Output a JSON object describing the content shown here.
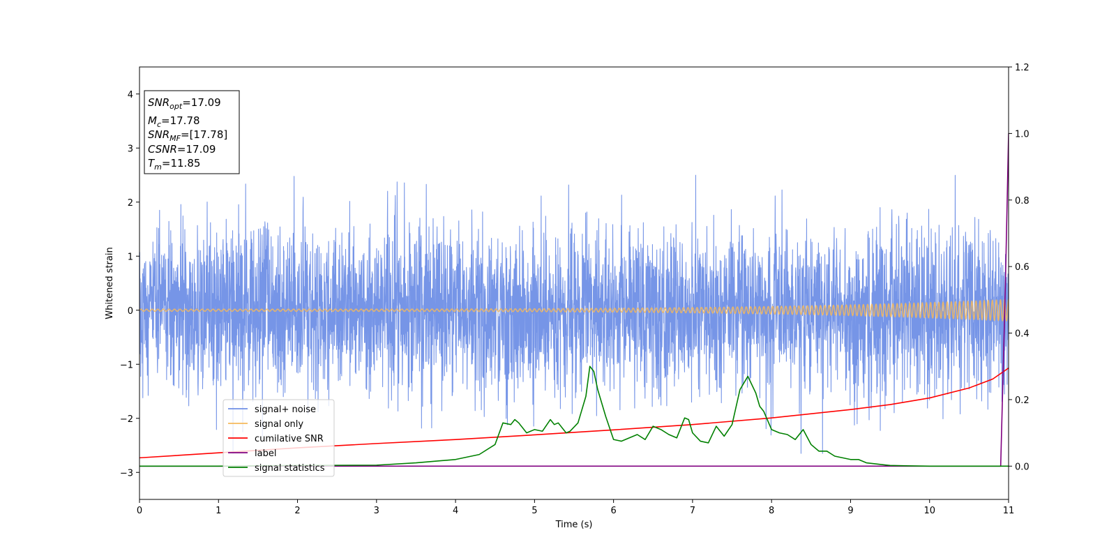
{
  "chart_data": {
    "type": "line",
    "xlabel": "Time (s)",
    "ylabel": "Whitened strain",
    "xlim": [
      0,
      11
    ],
    "ylim": [
      -3.5,
      4.5
    ],
    "y2lim": [
      -0.1,
      1.2
    ],
    "x_ticks": [
      0,
      1,
      2,
      3,
      4,
      5,
      6,
      7,
      8,
      9,
      10,
      11
    ],
    "y_ticks": [
      -3,
      -2,
      -1,
      0,
      1,
      2,
      3,
      4
    ],
    "y_tick_labels": [
      "−3",
      "−2",
      "−1",
      "0",
      "1",
      "2",
      "3",
      "4"
    ],
    "y2_ticks": [
      0.0,
      0.2,
      0.4,
      0.6,
      0.8,
      1.0,
      1.2
    ],
    "y2_tick_labels": [
      "0.0",
      "0.2",
      "0.4",
      "0.6",
      "0.8",
      "1.0",
      "1.2"
    ],
    "grid": false,
    "legend_position": "lower-left",
    "annotation": {
      "lines": [
        {
          "sym": "SNR",
          "sub": "opt",
          "value": "=17.09"
        },
        {
          "sym": "M",
          "sub": "c",
          "value": "=17.78"
        },
        {
          "sym": "SNR",
          "sub": "MF",
          "value": "=[17.78]"
        },
        {
          "sym": "CSNR",
          "sub": "",
          "value": "=17.09"
        },
        {
          "sym": "T",
          "sub": "m",
          "value": "=11.85"
        }
      ]
    },
    "series": [
      {
        "name": "signal+ noise",
        "axis": "left",
        "color": "#6f8fe6",
        "noise": {
          "sigma": 0.75,
          "tail_peak_max": 2.9,
          "tail_trough_min": -2.65
        }
      },
      {
        "name": "signal only",
        "axis": "left",
        "color": "#f5b95c",
        "chirp": {
          "start_amplitude": 0.02,
          "end_amplitude": 0.2
        }
      },
      {
        "name": "cumilative SNR",
        "axis": "right",
        "color": "#ff0000",
        "x": [
          0,
          1,
          2,
          3,
          4,
          5,
          6,
          7,
          8,
          9,
          9.5,
          10,
          10.5,
          10.8,
          11
        ],
        "values": [
          0.025,
          0.04,
          0.055,
          0.068,
          0.08,
          0.094,
          0.109,
          0.125,
          0.145,
          0.17,
          0.185,
          0.205,
          0.235,
          0.262,
          0.295
        ]
      },
      {
        "name": "label",
        "axis": "right",
        "color": "#800080",
        "x": [
          0,
          10.9,
          10.96,
          11
        ],
        "values": [
          0,
          0,
          0.55,
          1.0
        ]
      },
      {
        "name": "signal statistics",
        "axis": "right",
        "color": "#008000",
        "x": [
          0,
          1,
          2,
          3,
          3.5,
          4,
          4.3,
          4.5,
          4.6,
          4.7,
          4.75,
          4.8,
          4.9,
          5.0,
          5.1,
          5.2,
          5.25,
          5.3,
          5.4,
          5.45,
          5.55,
          5.65,
          5.7,
          5.75,
          5.8,
          5.9,
          6.0,
          6.1,
          6.2,
          6.3,
          6.4,
          6.5,
          6.6,
          6.7,
          6.8,
          6.9,
          6.95,
          7.0,
          7.1,
          7.2,
          7.3,
          7.4,
          7.5,
          7.6,
          7.7,
          7.8,
          7.85,
          7.9,
          8.0,
          8.1,
          8.2,
          8.3,
          8.4,
          8.5,
          8.6,
          8.7,
          8.8,
          8.9,
          9.0,
          9.1,
          9.2,
          9.5,
          9.7,
          10,
          11
        ],
        "values": [
          0,
          0,
          0.002,
          0.003,
          0.01,
          0.02,
          0.035,
          0.065,
          0.13,
          0.125,
          0.14,
          0.13,
          0.1,
          0.11,
          0.105,
          0.14,
          0.125,
          0.13,
          0.1,
          0.105,
          0.13,
          0.21,
          0.3,
          0.285,
          0.23,
          0.15,
          0.08,
          0.075,
          0.085,
          0.095,
          0.08,
          0.12,
          0.11,
          0.095,
          0.085,
          0.145,
          0.14,
          0.1,
          0.075,
          0.07,
          0.12,
          0.09,
          0.125,
          0.23,
          0.27,
          0.22,
          0.18,
          0.165,
          0.11,
          0.1,
          0.095,
          0.08,
          0.11,
          0.065,
          0.045,
          0.045,
          0.03,
          0.025,
          0.02,
          0.02,
          0.01,
          0.002,
          0.001,
          0,
          0
        ]
      }
    ]
  }
}
